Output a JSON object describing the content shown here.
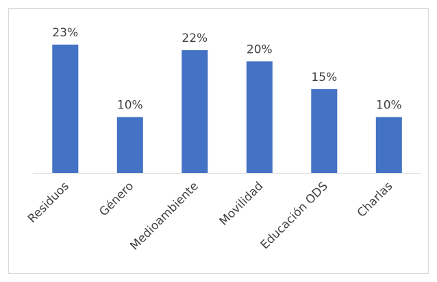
{
  "chart_data": {
    "type": "bar",
    "title": "",
    "xlabel": "",
    "ylabel": "",
    "categories": [
      "Residuos",
      "Género",
      "Medioambiente",
      "Movilidad",
      "Educación ODS",
      "Charlas"
    ],
    "values": [
      23,
      10,
      22,
      20,
      15,
      10
    ],
    "data_labels": [
      "23%",
      "10%",
      "22%",
      "20%",
      "15%",
      "10%"
    ],
    "unit": "%",
    "ylim": [
      0,
      25
    ],
    "grid": false,
    "legend": "none",
    "bar_color": "#4472c4",
    "axis_color": "#d9d9d9",
    "label_color": "#404040"
  }
}
